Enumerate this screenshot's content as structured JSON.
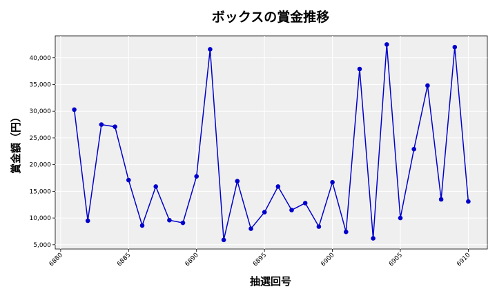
{
  "chart_data": {
    "type": "line",
    "title": "ボックスの賞金推移",
    "xlabel": "抽選回号",
    "ylabel": "賞金額（円）",
    "xlim": [
      6879.6,
      6911.4
    ],
    "ylim": [
      4200,
      44100
    ],
    "x_ticks": [
      6880,
      6885,
      6890,
      6895,
      6900,
      6905,
      6910
    ],
    "y_ticks": [
      5000,
      10000,
      15000,
      20000,
      25000,
      30000,
      35000,
      40000
    ],
    "y_tick_labels": [
      "5,000",
      "10,000",
      "15,000",
      "20,000",
      "25,000",
      "30,000",
      "35,000",
      "40,000"
    ],
    "grid": true,
    "line_color": "#0000cc",
    "plot_background": "#efefef",
    "series": [
      {
        "x": [
          6881,
          6882,
          6883,
          6884,
          6885,
          6886,
          6887,
          6888,
          6889,
          6890,
          6891,
          6892,
          6893,
          6894,
          6895,
          6896,
          6897,
          6898,
          6899,
          6900,
          6901,
          6902,
          6903,
          6904,
          6905,
          6906,
          6907,
          6908,
          6909,
          6910
        ],
        "values": [
          30300,
          9500,
          27500,
          27100,
          17100,
          8600,
          15900,
          9600,
          9100,
          17800,
          41600,
          5900,
          16900,
          8000,
          11100,
          15900,
          11500,
          12800,
          8400,
          16700,
          7400,
          37900,
          6200,
          42500,
          10000,
          22900,
          34800,
          13500,
          42000,
          13100
        ]
      }
    ]
  }
}
